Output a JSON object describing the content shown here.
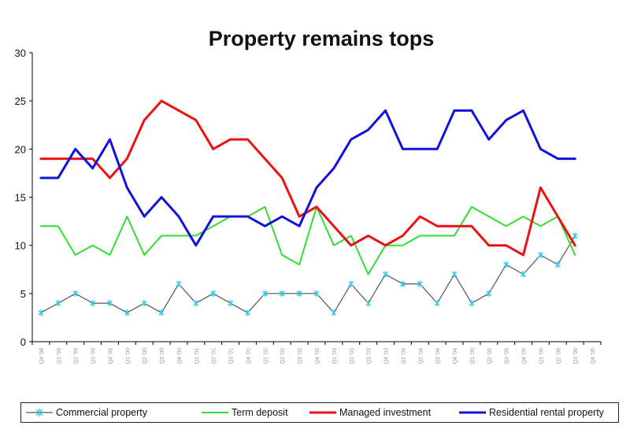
{
  "chart_data": {
    "type": "line",
    "title": "Property remains tops",
    "xlabel": "",
    "ylabel": "",
    "ylim": [
      0,
      30
    ],
    "yticks": [
      0,
      5,
      10,
      15,
      20,
      25,
      30
    ],
    "grid": false,
    "legend_position": "bottom",
    "categories": [
      "Q4 '98",
      "Q1 '99",
      "Q2 '99",
      "Q3 '99",
      "Q4 '99",
      "Q1 '00",
      "Q2 '00",
      "Q3 '00",
      "Q4 '00",
      "Q1 '01",
      "Q2 '01",
      "Q3 '01",
      "Q4 '01",
      "Q1 '02",
      "Q2 '02",
      "Q3 '02",
      "Q4 '02",
      "Q1 '03",
      "Q2 '03",
      "Q3 '03",
      "Q4 '03",
      "Q1 '04",
      "Q2 '04",
      "Q3 '04",
      "Q4 '04",
      "Q1 '05",
      "Q2 '05",
      "Q3 '05",
      "Q4 '05",
      "Q1 '06",
      "Q2 '06",
      "Q3 '06",
      "Q4 '06"
    ],
    "series": [
      {
        "name": "Commercial property",
        "color": "#555555",
        "marker_color": "#33ccee",
        "width": 1.2,
        "values": [
          3,
          4,
          5,
          4,
          4,
          3,
          4,
          3,
          6,
          4,
          5,
          4,
          3,
          5,
          5,
          5,
          5,
          3,
          6,
          4,
          7,
          6,
          6,
          4,
          7,
          4,
          5,
          8,
          7,
          9,
          8,
          11,
          null
        ]
      },
      {
        "name": "Term deposit",
        "color": "#33dd33",
        "width": 2,
        "values": [
          12,
          12,
          9,
          10,
          9,
          13,
          9,
          11,
          11,
          11,
          12,
          13,
          13,
          14,
          9,
          8,
          14,
          10,
          11,
          7,
          10,
          10,
          11,
          11,
          11,
          14,
          13,
          12,
          13,
          12,
          13,
          9,
          null
        ]
      },
      {
        "name": "Managed investment",
        "color": "#ee1111",
        "width": 3,
        "values": [
          19,
          19,
          19,
          19,
          17,
          19,
          23,
          25,
          24,
          23,
          20,
          21,
          21,
          19,
          17,
          13,
          14,
          12,
          10,
          11,
          10,
          11,
          13,
          12,
          12,
          12,
          10,
          10,
          9,
          16,
          13,
          10,
          null
        ]
      },
      {
        "name": "Residential rental property",
        "color": "#1111dd",
        "width": 3,
        "values": [
          17,
          17,
          20,
          18,
          21,
          16,
          13,
          15,
          13,
          10,
          13,
          13,
          13,
          12,
          13,
          12,
          16,
          18,
          21,
          22,
          24,
          20,
          20,
          20,
          24,
          24,
          21,
          23,
          24,
          20,
          19,
          19,
          null
        ]
      }
    ]
  }
}
